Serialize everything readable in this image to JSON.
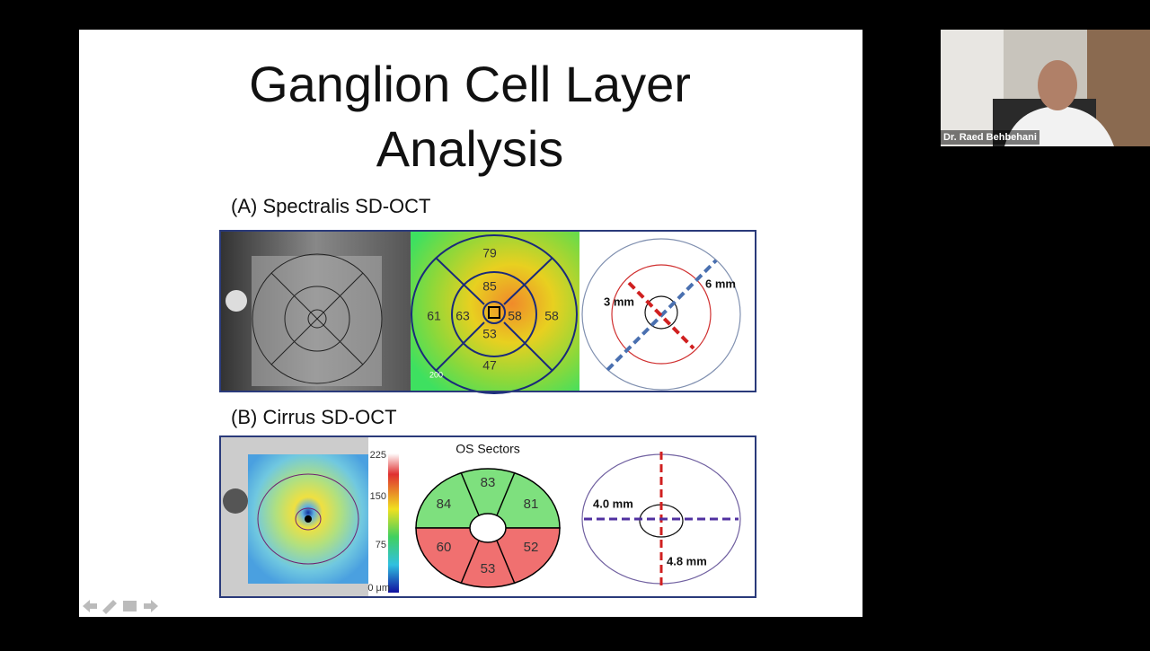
{
  "slide": {
    "title_lines": [
      "Ganglion Cell Layer",
      "Analysis"
    ],
    "panel_a": {
      "label": "(A) Spectralis SD-OCT",
      "map_values": [
        "79",
        "85",
        "61",
        "63",
        "58",
        "58",
        "53",
        "47"
      ],
      "scale": "200",
      "diagram_labels": [
        "3 mm",
        "6 mm"
      ]
    },
    "panel_b": {
      "label": "(B) Cirrus SD-OCT",
      "colorbar_ticks": [
        "225",
        "150",
        "75",
        "0 μm"
      ],
      "sectors_title": "OS Sectors",
      "sectors": [
        "83",
        "84",
        "81",
        "60",
        "52",
        "53"
      ],
      "diagram_labels": [
        "4.0 mm",
        "4.8 mm"
      ]
    }
  },
  "participant": {
    "name": "Dr. Raed Behbehani"
  }
}
